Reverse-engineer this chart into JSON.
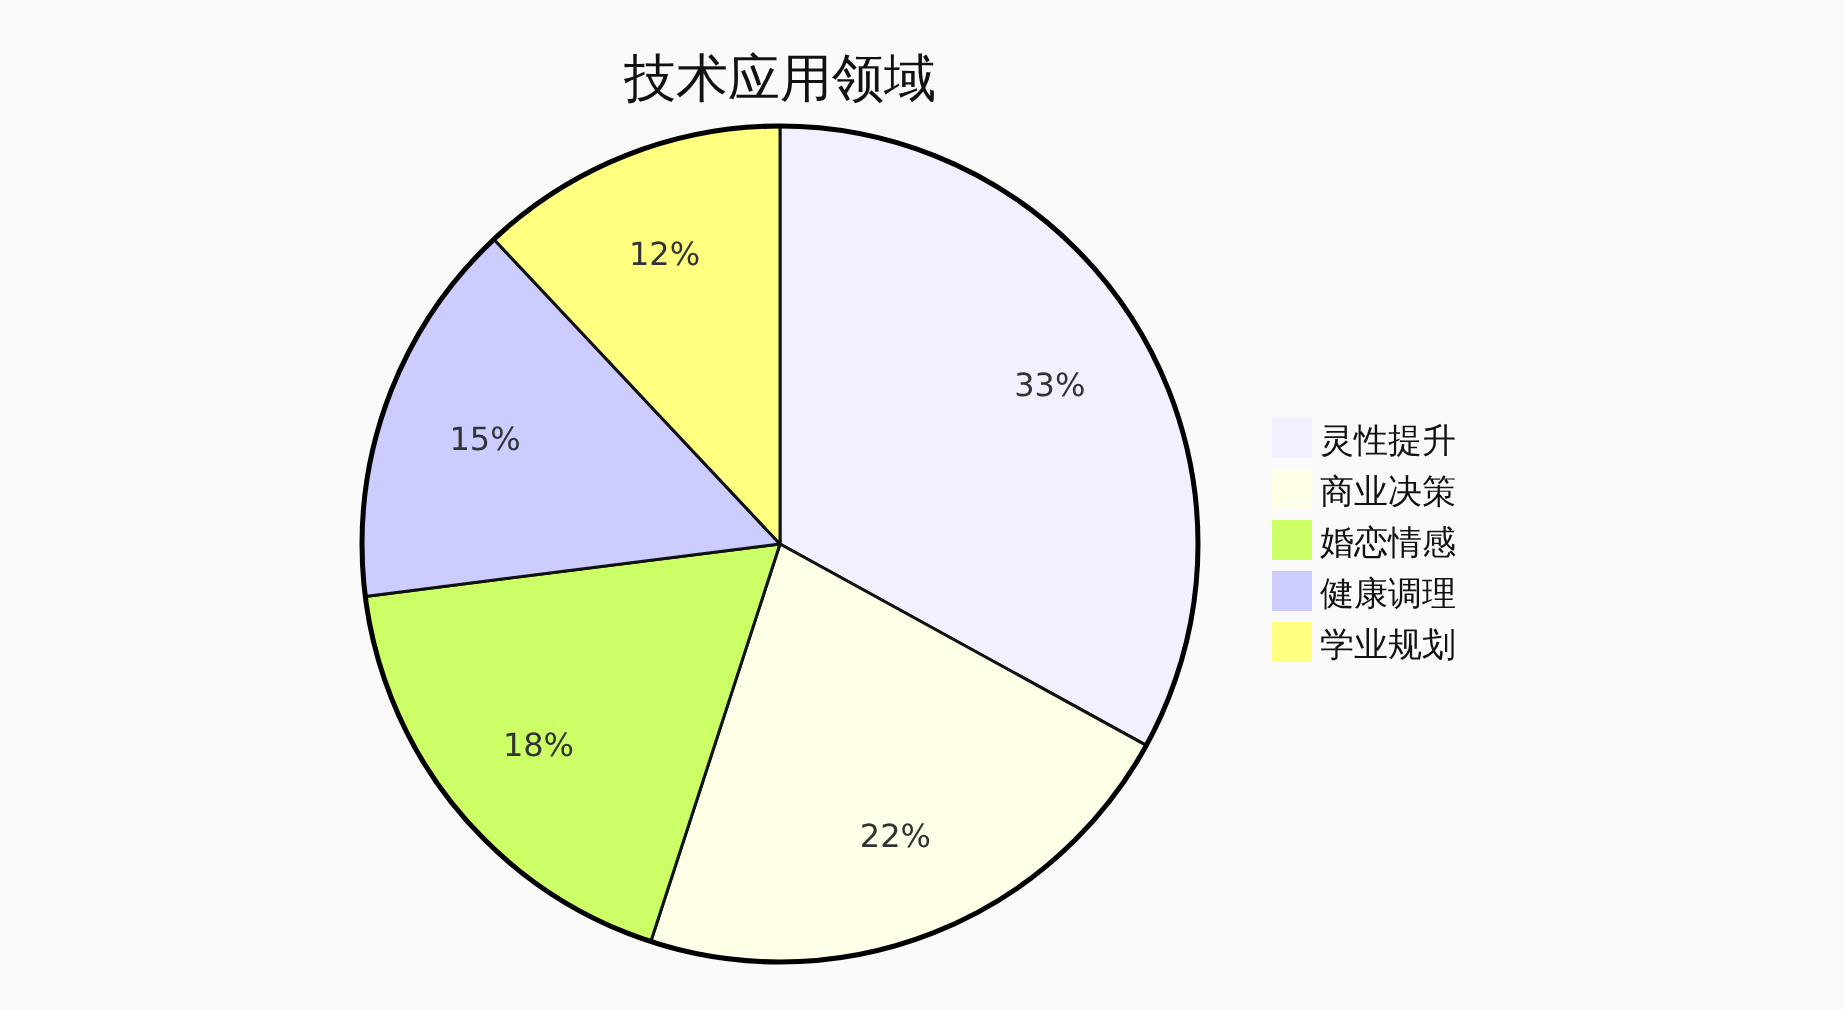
{
  "chart_data": {
    "type": "pie",
    "title": "技术应用领域",
    "categories": [
      "灵性提升",
      "商业决策",
      "婚恋情感",
      "健康调理",
      "学业规划"
    ],
    "values": [
      33,
      22,
      18,
      15,
      12
    ],
    "colors": [
      "#f0f0ff",
      "#ffffe8",
      "#ccff66",
      "#ccccff",
      "#ffff80"
    ],
    "value_labels": [
      "33%",
      "22%",
      "18%",
      "15%",
      "12%"
    ],
    "legend": "right"
  }
}
